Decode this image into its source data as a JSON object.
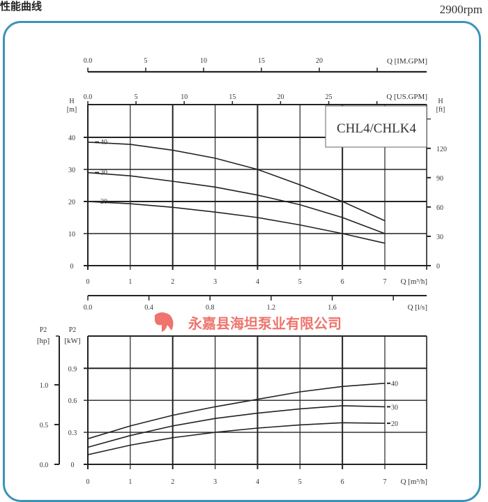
{
  "header": {
    "title": "性能曲线",
    "speed": "2900rpm"
  },
  "watermark": {
    "company": "永嘉县海坦泵业有限公司",
    "logo_text": "海坦泵业",
    "color": "#e8463c"
  },
  "chart_data": [
    {
      "type": "line",
      "model_label": "CHL4/CHLK4",
      "xlabel": "Q [m³/h]",
      "ylabel_left": "H [m]",
      "ylabel_right": "H [ft]",
      "x_ticks": [
        0,
        1,
        2,
        3,
        4,
        5,
        6,
        7
      ],
      "xlim": [
        0,
        8
      ],
      "ylim": [
        0,
        50
      ],
      "y_ticks": [
        0,
        10,
        20,
        30,
        40
      ],
      "y_right_ticks_ft": [
        0,
        30,
        60,
        90,
        120
      ],
      "secondary_x_axes": [
        {
          "label": "Q [IM.GPM]",
          "ticks": [
            0.0,
            5,
            10,
            15,
            20,
            25
          ],
          "tick_labels": [
            "0.0",
            "5",
            "10",
            "15",
            "20"
          ]
        },
        {
          "label": "Q [US.GPM]",
          "ticks": [
            0.0,
            5,
            10,
            15,
            20,
            25,
            30
          ],
          "tick_labels": [
            "0.0",
            "5",
            "10",
            "15",
            "20",
            "25"
          ]
        }
      ],
      "grid": true,
      "series": [
        {
          "name": "-40",
          "x": [
            0,
            1,
            2,
            3,
            4,
            5,
            6,
            7
          ],
          "y": [
            38.5,
            37.8,
            36,
            33.5,
            30,
            25.2,
            20,
            14
          ]
        },
        {
          "name": "-30",
          "x": [
            0,
            1,
            2,
            3,
            4,
            5,
            6,
            7
          ],
          "y": [
            29,
            28,
            26.3,
            24.5,
            22,
            19,
            15,
            10
          ]
        },
        {
          "name": "-20",
          "x": [
            0,
            1,
            2,
            3,
            4,
            5,
            6,
            7
          ],
          "y": [
            20,
            19.3,
            18.2,
            16.7,
            15,
            12.7,
            10,
            7
          ]
        }
      ]
    },
    {
      "type": "axis",
      "label": "Q [l/s]",
      "ticks": [
        0.0,
        0.4,
        0.8,
        1.2,
        1.6,
        2.0
      ],
      "tick_labels": [
        "0.0",
        "0.4",
        "0.8",
        "1.2",
        "1.6"
      ]
    },
    {
      "type": "line",
      "xlabel": "Q [m³/h]",
      "ylabel_left_outer": "P2 [hp]",
      "ylabel_left": "P2 [kW]",
      "x_ticks": [
        0,
        1,
        2,
        3,
        4,
        5,
        6,
        7
      ],
      "xlim": [
        0,
        8
      ],
      "ylim": [
        0,
        1.2
      ],
      "y_ticks": [
        0,
        0.3,
        0.6,
        0.9
      ],
      "y_tick_labels": [
        "0",
        "0.3",
        "0.6",
        "0.9"
      ],
      "hp_ticks": [
        0.0,
        0.5,
        1.0
      ],
      "hp_tick_labels": [
        "0.0",
        "0.5",
        "1.0"
      ],
      "grid": true,
      "series": [
        {
          "name": "-40",
          "x": [
            0,
            1,
            2,
            3,
            4,
            5,
            6,
            7
          ],
          "y": [
            0.24,
            0.36,
            0.46,
            0.54,
            0.61,
            0.68,
            0.73,
            0.76
          ]
        },
        {
          "name": "-30",
          "x": [
            0,
            1,
            2,
            3,
            4,
            5,
            6,
            7
          ],
          "y": [
            0.16,
            0.27,
            0.36,
            0.43,
            0.48,
            0.52,
            0.55,
            0.54
          ]
        },
        {
          "name": "-20",
          "x": [
            0,
            1,
            2,
            3,
            4,
            5,
            6,
            7
          ],
          "y": [
            0.09,
            0.18,
            0.25,
            0.3,
            0.34,
            0.37,
            0.39,
            0.385
          ]
        }
      ]
    }
  ]
}
